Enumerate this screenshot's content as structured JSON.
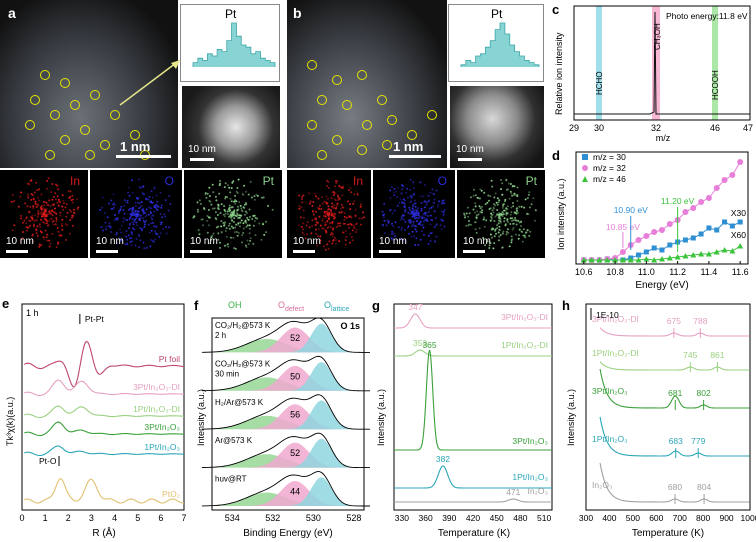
{
  "panel_a": {
    "label": "a",
    "scale_main": "1 nm",
    "inset_title": "Pt",
    "inset_scale": "10 nm",
    "eds": [
      {
        "element": "In",
        "scale": "10 nm",
        "color": "#d81b1b"
      },
      {
        "element": "O",
        "scale": "10 nm",
        "color": "#2c2cd8"
      },
      {
        "element": "Pt",
        "scale": "10 nm",
        "color": "#8bd08b"
      }
    ]
  },
  "panel_b": {
    "label": "b",
    "scale_main": "1 nm",
    "inset_title": "Pt",
    "inset_scale": "10 nm",
    "eds": [
      {
        "element": "In",
        "scale": "10 nm",
        "color": "#d81b1b"
      },
      {
        "element": "O",
        "scale": "10 nm",
        "color": "#2c2cd8"
      },
      {
        "element": "Pt",
        "scale": "10 nm",
        "color": "#8bd08b"
      }
    ]
  },
  "panel_c": {
    "label": "c",
    "annotation": "Photo energy:11.8 eV",
    "ylabel": "Relative ion intensity",
    "xlabel": "m/z",
    "bands": [
      {
        "text": "HCHO",
        "color": "#7fd3e3"
      },
      {
        "text": "CH₃OH",
        "color": "#f4a0c8"
      },
      {
        "text": "HCOOH",
        "color": "#8fe08a"
      }
    ],
    "chart_data": {
      "type": "line",
      "xticks": [
        "29",
        "30",
        "32",
        "46",
        "47"
      ],
      "peaks": [
        {
          "x": 30,
          "y": 0.02
        },
        {
          "x": 32,
          "y": 1.0
        },
        {
          "x": 46,
          "y": 0.02
        }
      ]
    }
  },
  "panel_d": {
    "label": "d",
    "ylabel": "Ion intensity (a.u.)",
    "xlabel": "Energy (eV)",
    "annotations": [
      "10.85 eV",
      "10.90 eV",
      "11.20 eV",
      "X30",
      "X60"
    ],
    "chart_data": {
      "type": "scatter",
      "xticks": [
        "10.6",
        "10.8",
        "11.0",
        "11.2",
        "11.4",
        "11.6"
      ],
      "xlim": [
        10.55,
        11.65
      ],
      "ylim": [
        0,
        1
      ],
      "series": [
        {
          "name": "m/z = 30",
          "color": "#2f8fd3",
          "x": [
            10.6,
            10.65,
            10.7,
            10.75,
            10.8,
            10.85,
            10.9,
            10.95,
            11.0,
            11.05,
            11.1,
            11.15,
            11.2,
            11.25,
            11.3,
            11.35,
            11.4,
            11.45,
            11.5,
            11.55,
            11.6
          ],
          "y": [
            0.0,
            0.0,
            0.0,
            0.01,
            0.0,
            0.0,
            0.02,
            0.05,
            0.08,
            0.12,
            0.1,
            0.15,
            0.18,
            0.2,
            0.22,
            0.26,
            0.32,
            0.3,
            0.38,
            0.34,
            0.38
          ]
        },
        {
          "name": "m/z = 32",
          "color": "#e77fd9",
          "x": [
            10.6,
            10.65,
            10.7,
            10.75,
            10.8,
            10.85,
            10.9,
            10.95,
            11.0,
            11.05,
            11.1,
            11.15,
            11.2,
            11.25,
            11.3,
            11.35,
            11.4,
            11.45,
            11.5,
            11.55,
            11.6
          ],
          "y": [
            0.0,
            0.0,
            0.0,
            0.01,
            0.02,
            0.08,
            0.15,
            0.2,
            0.24,
            0.28,
            0.3,
            0.36,
            0.4,
            0.48,
            0.52,
            0.58,
            0.62,
            0.72,
            0.8,
            0.85,
            0.98
          ]
        },
        {
          "name": "m/z = 46",
          "color": "#3cc33c",
          "x": [
            10.6,
            10.65,
            10.7,
            10.75,
            10.8,
            10.85,
            10.9,
            10.95,
            11.0,
            11.05,
            11.1,
            11.15,
            11.2,
            11.25,
            11.3,
            11.35,
            11.4,
            11.45,
            11.5,
            11.55,
            11.6
          ],
          "y": [
            0.0,
            0.0,
            0.0,
            0.0,
            0.0,
            0.0,
            0.0,
            0.0,
            0.01,
            0.0,
            0.01,
            0.02,
            0.03,
            0.04,
            0.05,
            0.06,
            0.06,
            0.08,
            0.1,
            0.09,
            0.14
          ]
        }
      ]
    }
  },
  "panel_e": {
    "label": "e",
    "time": "1 h",
    "ylabel": "Tk³χ(k)(a.u.)",
    "xlabel": "R (Å)",
    "peak_labels": [
      "Pt-Pt",
      "Pt-O"
    ],
    "chart_data": {
      "type": "line",
      "xticks": [
        "0",
        "1",
        "2",
        "3",
        "4",
        "5",
        "6",
        "7"
      ],
      "series": [
        {
          "name": "Pt foil",
          "color": "#c0466d"
        },
        {
          "name": "3Pt/In₂O₃-DI",
          "color": "#e6a0c2"
        },
        {
          "name": "1Pt/In₂O₃-DI",
          "color": "#9ad080"
        },
        {
          "name": "3Pt/In₂O₃",
          "color": "#3aa03a"
        },
        {
          "name": "1Pt/In₂O₃",
          "color": "#2aa6b8"
        },
        {
          "name": "PtO₂",
          "color": "#e0c070"
        }
      ]
    }
  },
  "panel_f": {
    "label": "f",
    "legend": [
      "OH",
      "O",
      "defect",
      "O",
      "lattice"
    ],
    "title": "O 1s",
    "ylabel": "Intensity (a.u.)",
    "xlabel": "Binding Energy (eV)",
    "conditions": [
      {
        "label": "CO₂/H₂@573 K",
        "sub": "2 h",
        "value": "52"
      },
      {
        "label": "CO₂/H₂@573 K",
        "sub": "30 min",
        "value": "50"
      },
      {
        "label": "H₂/Ar@573 K",
        "sub": "",
        "value": "56"
      },
      {
        "label": "Ar@573 K",
        "sub": "",
        "value": "52"
      },
      {
        "label": "huv@RT",
        "sub": "",
        "value": "44"
      }
    ],
    "chart_data": {
      "type": "line",
      "xticks": [
        "534",
        "532",
        "530",
        "528"
      ]
    }
  },
  "panel_g": {
    "label": "g",
    "ylabel": "Intensity (a.u.)",
    "xlabel": "Temperature (K)",
    "chart_data": {
      "type": "line",
      "xticks": [
        "330",
        "360",
        "390",
        "420",
        "450",
        "480",
        "510"
      ],
      "series": [
        {
          "name": "3Pt/In₂O₃-DI",
          "color": "#e6a0c2",
          "peak": "347"
        },
        {
          "name": "1Pt/In₂O₃-DI",
          "color": "#9ad080",
          "peak": "353"
        },
        {
          "name": "3Pt/In₂O₃",
          "color": "#3aa03a",
          "peak": "365"
        },
        {
          "name": "1Pt/In₂O₃",
          "color": "#2aa6b8",
          "peak": "382"
        },
        {
          "name": "In₂O₃",
          "color": "#a0a0a0",
          "peak": "471"
        }
      ]
    }
  },
  "panel_h": {
    "label": "h",
    "scale": "1E-10",
    "ylabel": "Intensity (a.u.)",
    "xlabel": "Temperature (K)",
    "chart_data": {
      "type": "line",
      "xticks": [
        "300",
        "400",
        "500",
        "600",
        "700",
        "800",
        "900",
        "1000"
      ],
      "series": [
        {
          "name": "3Pt/In₂O₃-DI",
          "color": "#e6a0c2",
          "peaks": [
            "675",
            "788"
          ]
        },
        {
          "name": "1Pt/In₂O₃-DI",
          "color": "#9ad080",
          "peaks": [
            "745",
            "861"
          ]
        },
        {
          "name": "3Pt/In₂O₃",
          "color": "#3aa03a",
          "peaks": [
            "681",
            "802"
          ]
        },
        {
          "name": "1Pt/In₂O₃",
          "color": "#2aa6b8",
          "peaks": [
            "683",
            "779"
          ]
        },
        {
          "name": "In₂O₃",
          "color": "#a0a0a0",
          "peaks": [
            "680",
            "804"
          ]
        }
      ]
    }
  }
}
